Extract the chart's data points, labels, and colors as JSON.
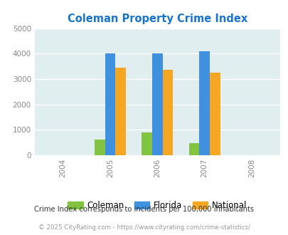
{
  "title": "Coleman Property Crime Index",
  "title_color": "#1874CD",
  "years": [
    2004,
    2005,
    2006,
    2007,
    2008
  ],
  "bar_years": [
    2005,
    2006,
    2007
  ],
  "coleman": [
    600,
    880,
    470
  ],
  "florida": [
    4020,
    4010,
    4080
  ],
  "national": [
    3450,
    3350,
    3240
  ],
  "coleman_color": "#82C341",
  "florida_color": "#4090E0",
  "national_color": "#F5A623",
  "ylim": [
    0,
    5000
  ],
  "yticks": [
    0,
    1000,
    2000,
    3000,
    4000,
    5000
  ],
  "bg_color": "#E0EEF0",
  "grid_color": "#FFFFFF",
  "bar_width": 0.22,
  "footnote1": "Crime Index corresponds to incidents per 100,000 inhabitants",
  "footnote2": "© 2025 CityRating.com - https://www.cityrating.com/crime-statistics/",
  "footnote1_color": "#333333",
  "footnote2_color": "#999999",
  "legend_labels": [
    "Coleman",
    "Florida",
    "National"
  ],
  "tick_color": "#888888"
}
